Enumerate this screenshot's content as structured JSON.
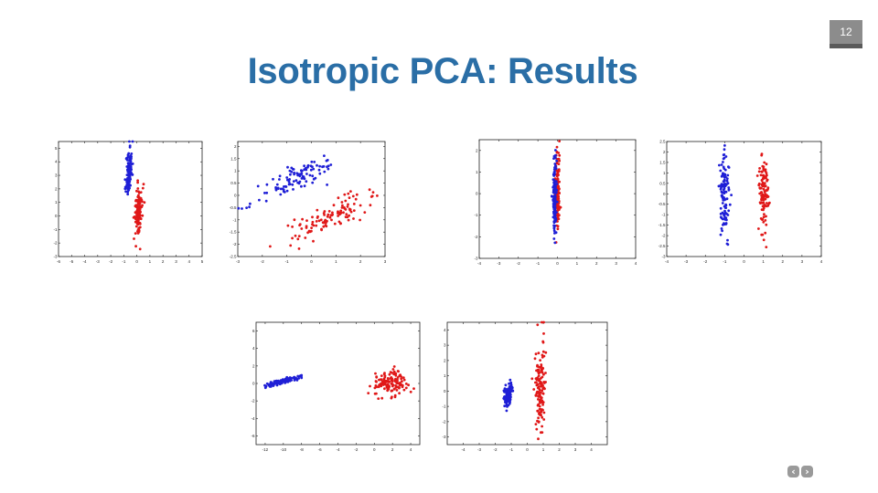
{
  "slide": {
    "title": "Isotropic PCA: Results",
    "page_number": "12"
  },
  "nav": {
    "prev_icon": "chevron-left-icon",
    "next_icon": "chevron-right-icon",
    "prev_glyph": "‹",
    "next_glyph": "›"
  },
  "colors": {
    "title": "#2a6ea6",
    "series_a": "#1f1fd6",
    "series_b": "#e01818"
  },
  "chart_data": [
    {
      "type": "scatter",
      "xlim": [
        -6,
        5
      ],
      "ylim": [
        -3,
        5.5
      ],
      "xticks": [
        "-6",
        "-5",
        "-4",
        "-3",
        "-2",
        "-1",
        "0",
        "1",
        "2",
        "3",
        "4",
        "5"
      ],
      "yticks": [
        "-3",
        "-2",
        "-1",
        "0",
        "1",
        "2",
        "3",
        "4",
        "5"
      ],
      "series": [
        {
          "color": "blue",
          "cx": -0.6,
          "cy": 3.3,
          "sx": 0.12,
          "sy": 0.9,
          "rho": 0.3,
          "n": 110,
          "seed": 11
        },
        {
          "color": "red",
          "cx": 0.15,
          "cy": 0.3,
          "sx": 0.15,
          "sy": 1.0,
          "rho": 0.3,
          "n": 110,
          "seed": 12
        }
      ]
    },
    {
      "type": "scatter",
      "xlim": [
        -3,
        3
      ],
      "ylim": [
        -2.5,
        2.2
      ],
      "xticks": [
        "-3",
        "-2",
        "-1",
        "0",
        "1",
        "2",
        "3"
      ],
      "yticks": [
        "-2.5",
        "-2",
        "-1.5",
        "-1",
        "-0.5",
        "0",
        "0.5",
        "1",
        "1.5",
        "2"
      ],
      "series": [
        {
          "color": "blue",
          "cx": -0.5,
          "cy": 0.7,
          "sx": 0.8,
          "sy": 0.45,
          "rho": 0.82,
          "n": 110,
          "seed": 21
        },
        {
          "color": "red",
          "cx": 0.7,
          "cy": -0.9,
          "sx": 0.8,
          "sy": 0.45,
          "rho": 0.82,
          "n": 110,
          "seed": 22
        }
      ]
    },
    {
      "type": "scatter",
      "xlim": [
        -4,
        4
      ],
      "ylim": [
        -3,
        2.5
      ],
      "xticks": [
        "-4",
        "-3",
        "-2",
        "-1",
        "0",
        "1",
        "2",
        "3",
        "4"
      ],
      "yticks": [
        "-3",
        "-2",
        "-1",
        "0",
        "1",
        "2"
      ],
      "series": [
        {
          "color": "red",
          "cx": 0.0,
          "cy": 0.1,
          "sx": 0.06,
          "sy": 0.95,
          "rho": 0,
          "n": 130,
          "seed": 31
        },
        {
          "color": "blue",
          "cx": -0.15,
          "cy": -0.1,
          "sx": 0.05,
          "sy": 0.9,
          "rho": 0,
          "n": 130,
          "seed": 32
        }
      ]
    },
    {
      "type": "scatter",
      "xlim": [
        -4,
        4
      ],
      "ylim": [
        -3,
        2.5
      ],
      "xticks": [
        "-4",
        "-3",
        "-2",
        "-1",
        "0",
        "1",
        "2",
        "3",
        "4"
      ],
      "yticks": [
        "-3",
        "-2.5",
        "-2",
        "-1.5",
        "-1",
        "-0.5",
        "0",
        "0.5",
        "1",
        "1.5",
        "2",
        "2.5"
      ],
      "series": [
        {
          "color": "blue",
          "cx": -1.0,
          "cy": 0.0,
          "sx": 0.13,
          "sy": 0.95,
          "rho": 0,
          "n": 110,
          "seed": 41
        },
        {
          "color": "red",
          "cx": 1.0,
          "cy": 0.0,
          "sx": 0.13,
          "sy": 0.95,
          "rho": 0,
          "n": 110,
          "seed": 42
        }
      ]
    },
    {
      "type": "scatter",
      "xlim": [
        -13,
        5
      ],
      "ylim": [
        -7,
        7
      ],
      "xticks": [
        "-12",
        "-10",
        "-8",
        "-6",
        "-4",
        "-2",
        "0",
        "2",
        "4"
      ],
      "yticks": [
        "-6",
        "-4",
        "-2",
        "0",
        "2",
        "4",
        "6"
      ],
      "series": [
        {
          "color": "blue",
          "cx": -10.2,
          "cy": 0.2,
          "sx": 1.1,
          "sy": 0.35,
          "rho": 0.9,
          "n": 110,
          "seed": 51
        },
        {
          "color": "red",
          "cx": 1.8,
          "cy": 0.0,
          "sx": 0.9,
          "sy": 0.8,
          "rho": 0.1,
          "n": 130,
          "seed": 52
        }
      ]
    },
    {
      "type": "scatter",
      "xlim": [
        -5,
        5
      ],
      "ylim": [
        -3.5,
        4.5
      ],
      "xticks": [
        "-4",
        "-3",
        "-2",
        "-1",
        "0",
        "1",
        "2",
        "3",
        "4"
      ],
      "yticks": [
        "-3",
        "-2",
        "-1",
        "0",
        "1",
        "2",
        "3",
        "4"
      ],
      "series": [
        {
          "color": "blue",
          "cx": -1.2,
          "cy": -0.2,
          "sx": 0.15,
          "sy": 0.45,
          "rho": 0.4,
          "n": 110,
          "seed": 61
        },
        {
          "color": "red",
          "cx": 0.8,
          "cy": 0.2,
          "sx": 0.16,
          "sy": 1.4,
          "rho": 0.1,
          "n": 130,
          "seed": 62
        }
      ]
    }
  ]
}
